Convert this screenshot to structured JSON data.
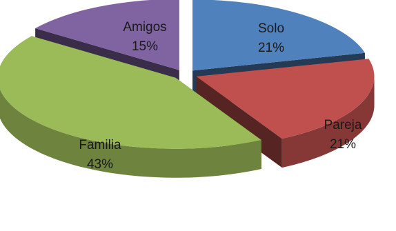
{
  "chart_data": {
    "type": "pie",
    "title": "",
    "style": "3d-exploded",
    "categories": [
      "Solo",
      "Pareja",
      "Familia",
      "Amigos"
    ],
    "values": [
      21,
      21,
      43,
      15
    ],
    "value_labels": [
      "21%",
      "21%",
      "43%",
      "15%"
    ],
    "colors": [
      "#4F81BD",
      "#C0504D",
      "#9BBB59",
      "#8064A2"
    ],
    "legend": "none",
    "data_labels": "inside"
  }
}
